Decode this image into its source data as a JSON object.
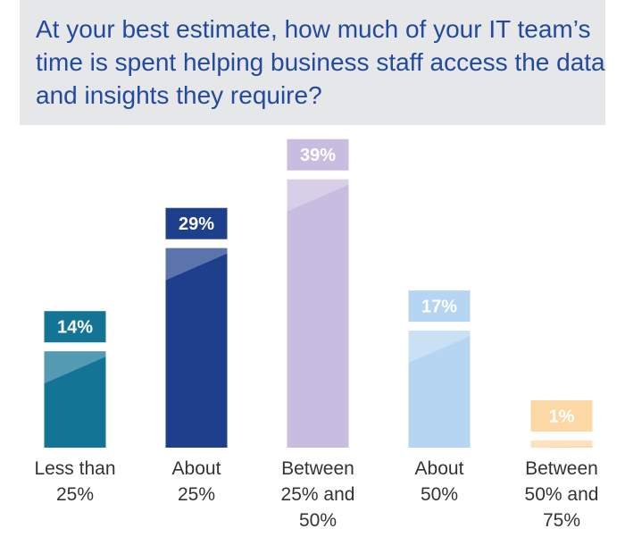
{
  "chart_data": {
    "type": "bar",
    "title": "At your best estimate, how much of your IT team’s time is spent helping business staff access the data and insights they require?",
    "categories": [
      "Less than 25%",
      "About 25%",
      "Between 25% and 50%",
      "About 50%",
      "Between 50% and 75%"
    ],
    "category_lines": [
      [
        "Less than",
        "25%"
      ],
      [
        "About",
        "25%"
      ],
      [
        "Between",
        "25% and",
        "50%"
      ],
      [
        "About",
        "50%"
      ],
      [
        "Between",
        "50% and",
        "75%"
      ]
    ],
    "values": [
      14,
      29,
      39,
      17,
      1
    ],
    "value_labels": [
      "14%",
      "29%",
      "39%",
      "17%",
      "1%"
    ],
    "colors": [
      "#137496",
      "#1e3f8c",
      "#c8bde0",
      "#b5d5f2",
      "#fbd8a4"
    ],
    "label_text_colors": [
      "#ffffff",
      "#ffffff",
      "#ffffff",
      "#ffffff",
      "#ffffff"
    ],
    "grid": false,
    "legend": "none"
  }
}
